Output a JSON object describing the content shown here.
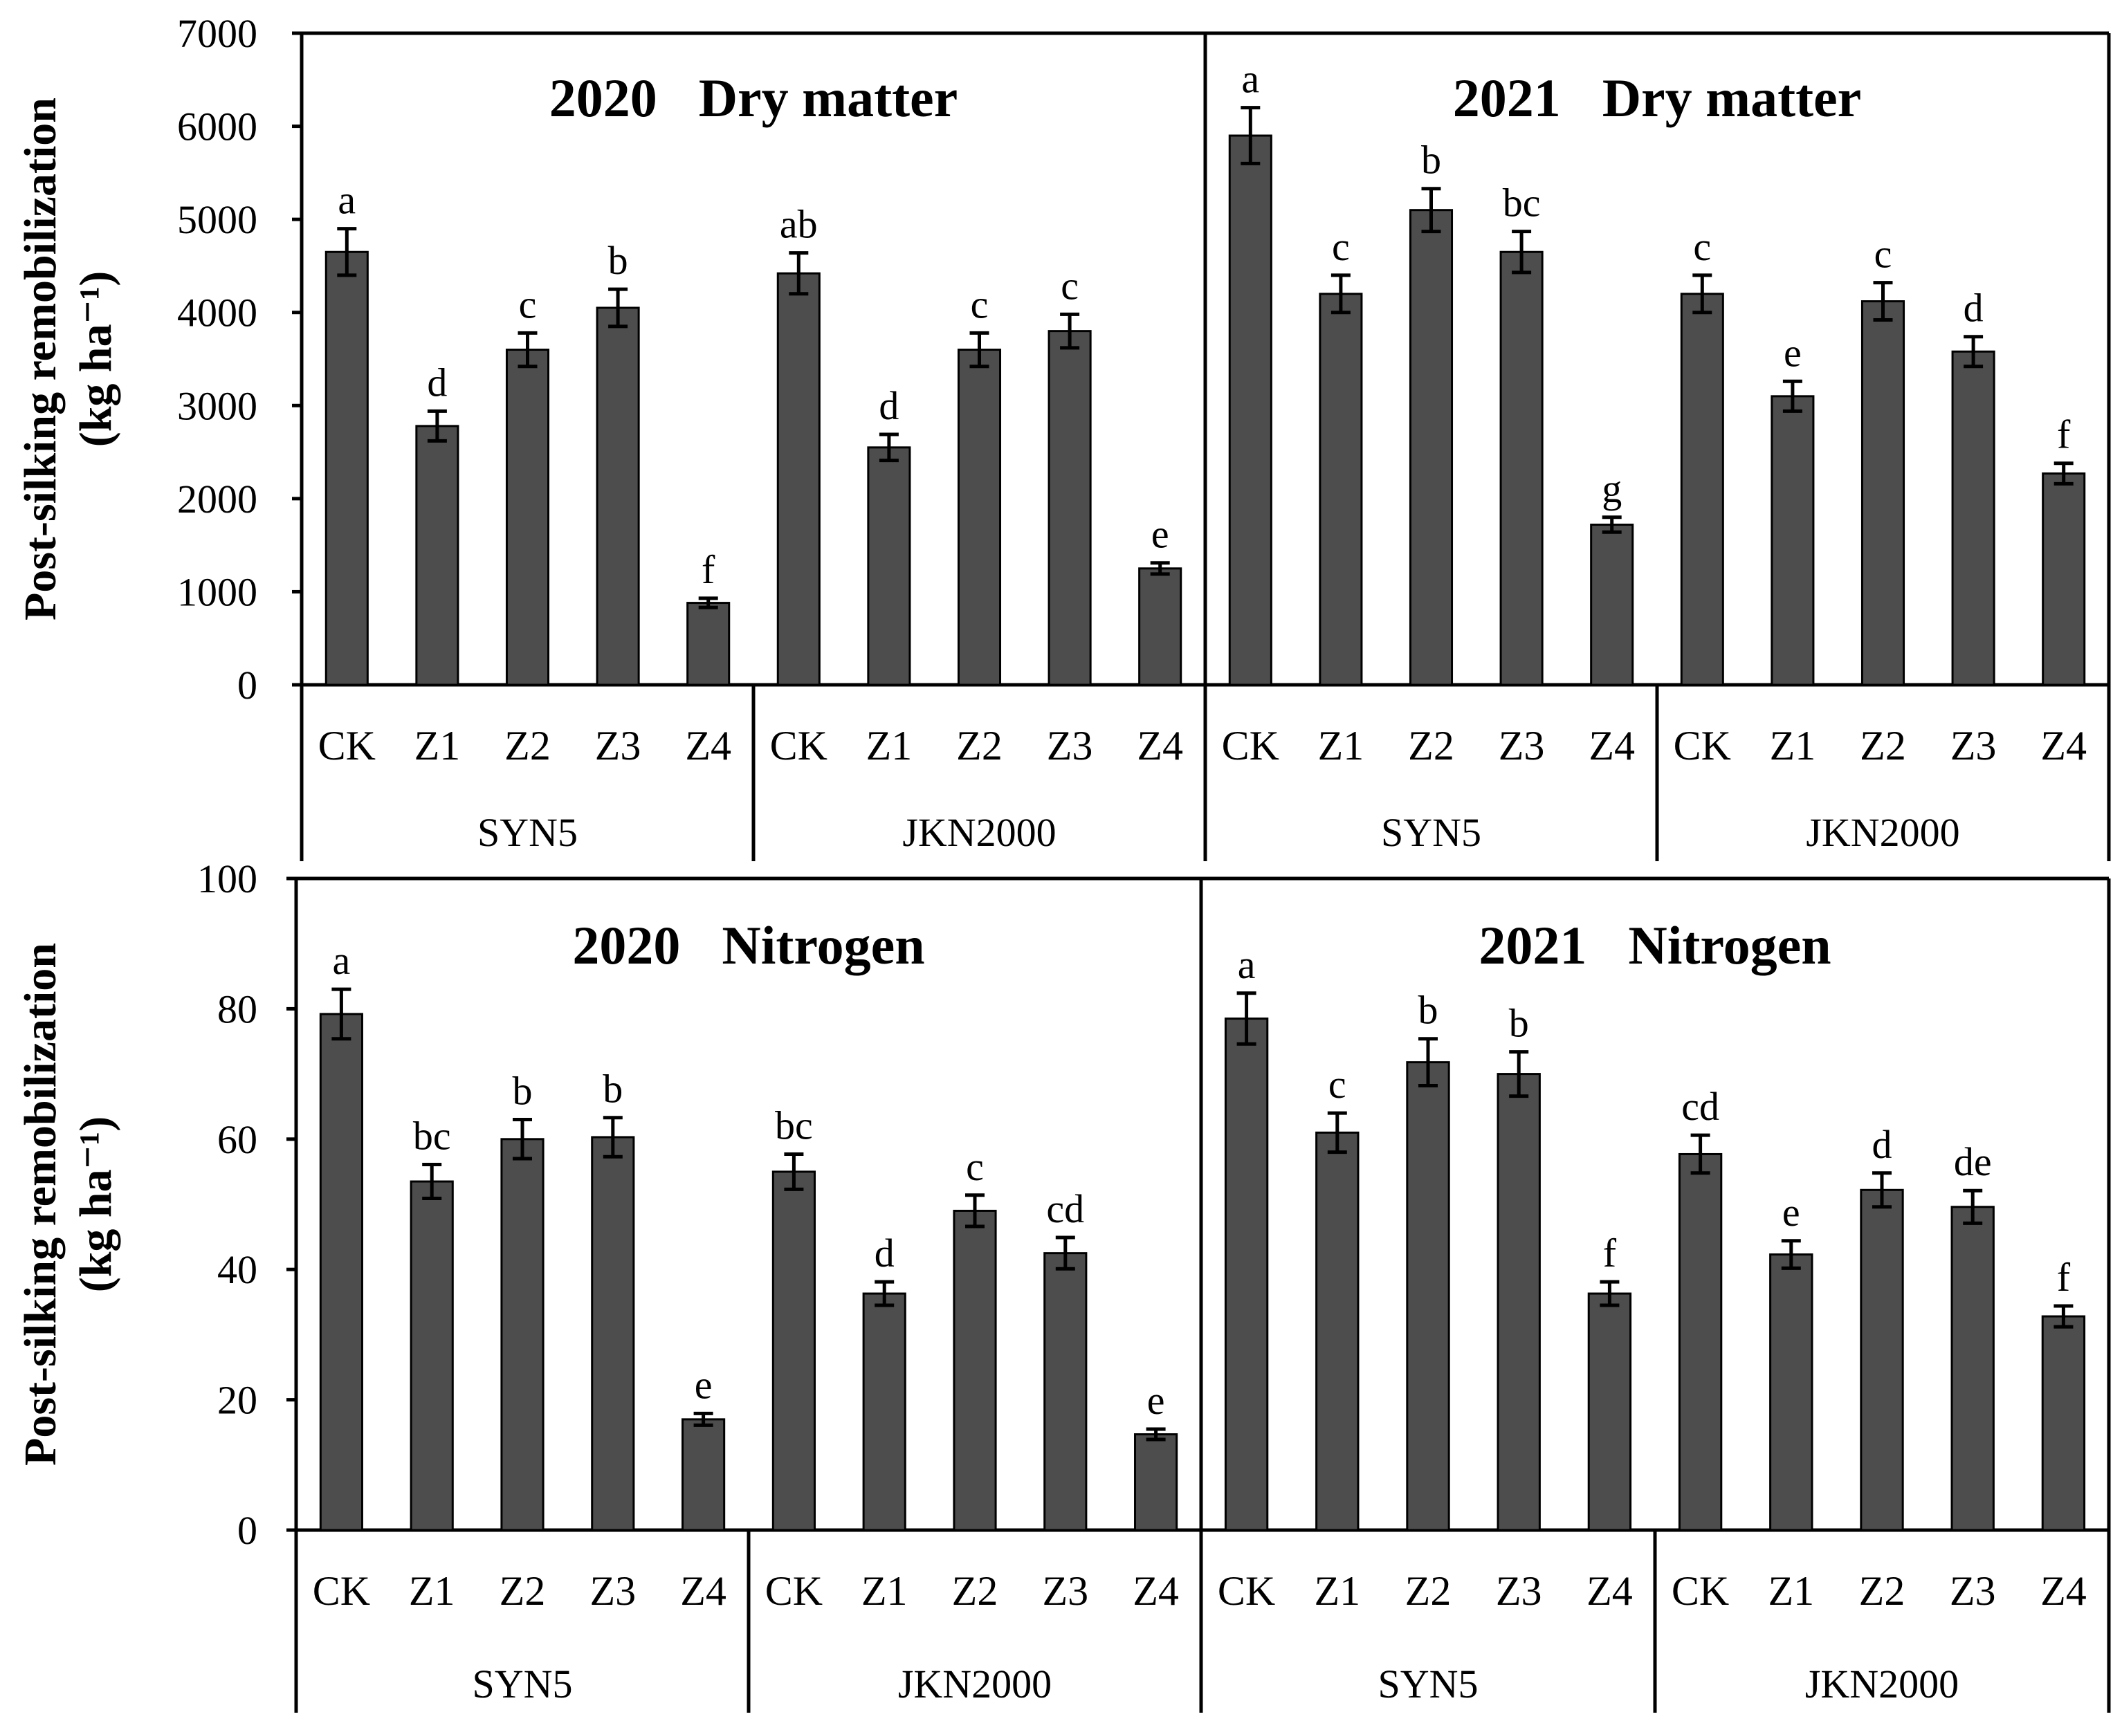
{
  "chart_data": [
    {
      "type": "bar",
      "title_year": "2020",
      "title_name": "Dry matter",
      "ylabel": "Post-silking remobilization",
      "yunit": "(kg ha⁻¹)",
      "ylim": [
        0,
        7000
      ],
      "yticks": [
        "0",
        "1000",
        "2000",
        "3000",
        "4000",
        "5000",
        "6000",
        "7000"
      ],
      "groups": [
        {
          "name": "SYN5",
          "categories": [
            "CK",
            "Z1",
            "Z2",
            "Z3",
            "Z4"
          ],
          "values": [
            4650,
            2780,
            3600,
            4050,
            880
          ],
          "errors": [
            250,
            160,
            180,
            200,
            50
          ],
          "letters": [
            "a",
            "d",
            "c",
            "b",
            "f"
          ]
        },
        {
          "name": "JKN2000",
          "categories": [
            "CK",
            "Z1",
            "Z2",
            "Z3",
            "Z4"
          ],
          "values": [
            4420,
            2550,
            3600,
            3800,
            1250
          ],
          "errors": [
            220,
            140,
            180,
            180,
            60
          ],
          "letters": [
            "ab",
            "d",
            "c",
            "c",
            "e"
          ]
        }
      ]
    },
    {
      "type": "bar",
      "title_year": "2021",
      "title_name": "Dry matter",
      "ylabel": "",
      "yunit": "",
      "ylim": [
        0,
        7000
      ],
      "yticks": [],
      "groups": [
        {
          "name": "SYN5",
          "categories": [
            "CK",
            "Z1",
            "Z2",
            "Z3",
            "Z4"
          ],
          "values": [
            5900,
            4200,
            5100,
            4650,
            1720
          ],
          "errors": [
            300,
            200,
            230,
            220,
            80
          ],
          "letters": [
            "a",
            "c",
            "b",
            "bc",
            "g"
          ]
        },
        {
          "name": "JKN2000",
          "categories": [
            "CK",
            "Z1",
            "Z2",
            "Z3",
            "Z4"
          ],
          "values": [
            4200,
            3100,
            4120,
            3580,
            2270
          ],
          "errors": [
            200,
            160,
            200,
            160,
            110
          ],
          "letters": [
            "c",
            "e",
            "c",
            "d",
            "f"
          ]
        }
      ]
    },
    {
      "type": "bar",
      "title_year": "2020",
      "title_name": "Nitrogen",
      "ylabel": "Post-silking remobilization",
      "yunit": "(kg ha⁻¹)",
      "ylim": [
        0,
        100
      ],
      "yticks": [
        "0",
        "20",
        "40",
        "60",
        "80",
        "100"
      ],
      "groups": [
        {
          "name": "SYN5",
          "categories": [
            "CK",
            "Z1",
            "Z2",
            "Z3",
            "Z4"
          ],
          "values": [
            79.2,
            53.5,
            60.0,
            60.3,
            17.0
          ],
          "errors": [
            3.8,
            2.6,
            3.0,
            3.0,
            0.9
          ],
          "letters": [
            "a",
            "bc",
            "b",
            "b",
            "e"
          ]
        },
        {
          "name": "JKN2000",
          "categories": [
            "CK",
            "Z1",
            "Z2",
            "Z3",
            "Z4"
          ],
          "values": [
            55.0,
            36.3,
            49.0,
            42.5,
            14.7
          ],
          "errors": [
            2.7,
            1.8,
            2.4,
            2.4,
            0.8
          ],
          "letters": [
            "bc",
            "d",
            "c",
            "cd",
            "e"
          ]
        }
      ]
    },
    {
      "type": "bar",
      "title_year": "2021",
      "title_name": "Nitrogen",
      "ylabel": "",
      "yunit": "",
      "ylim": [
        0,
        100
      ],
      "yticks": [],
      "groups": [
        {
          "name": "SYN5",
          "categories": [
            "CK",
            "Z1",
            "Z2",
            "Z3",
            "Z4"
          ],
          "values": [
            78.5,
            61.0,
            71.8,
            70.0,
            36.3
          ],
          "errors": [
            3.9,
            3.0,
            3.6,
            3.4,
            1.8
          ],
          "letters": [
            "a",
            "c",
            "b",
            "b",
            "f"
          ]
        },
        {
          "name": "JKN2000",
          "categories": [
            "CK",
            "Z1",
            "Z2",
            "Z3",
            "Z4"
          ],
          "values": [
            57.7,
            42.3,
            52.2,
            49.6,
            32.8
          ],
          "errors": [
            2.9,
            2.1,
            2.6,
            2.5,
            1.6
          ],
          "letters": [
            "cd",
            "e",
            "d",
            "de",
            "f"
          ]
        }
      ]
    }
  ]
}
